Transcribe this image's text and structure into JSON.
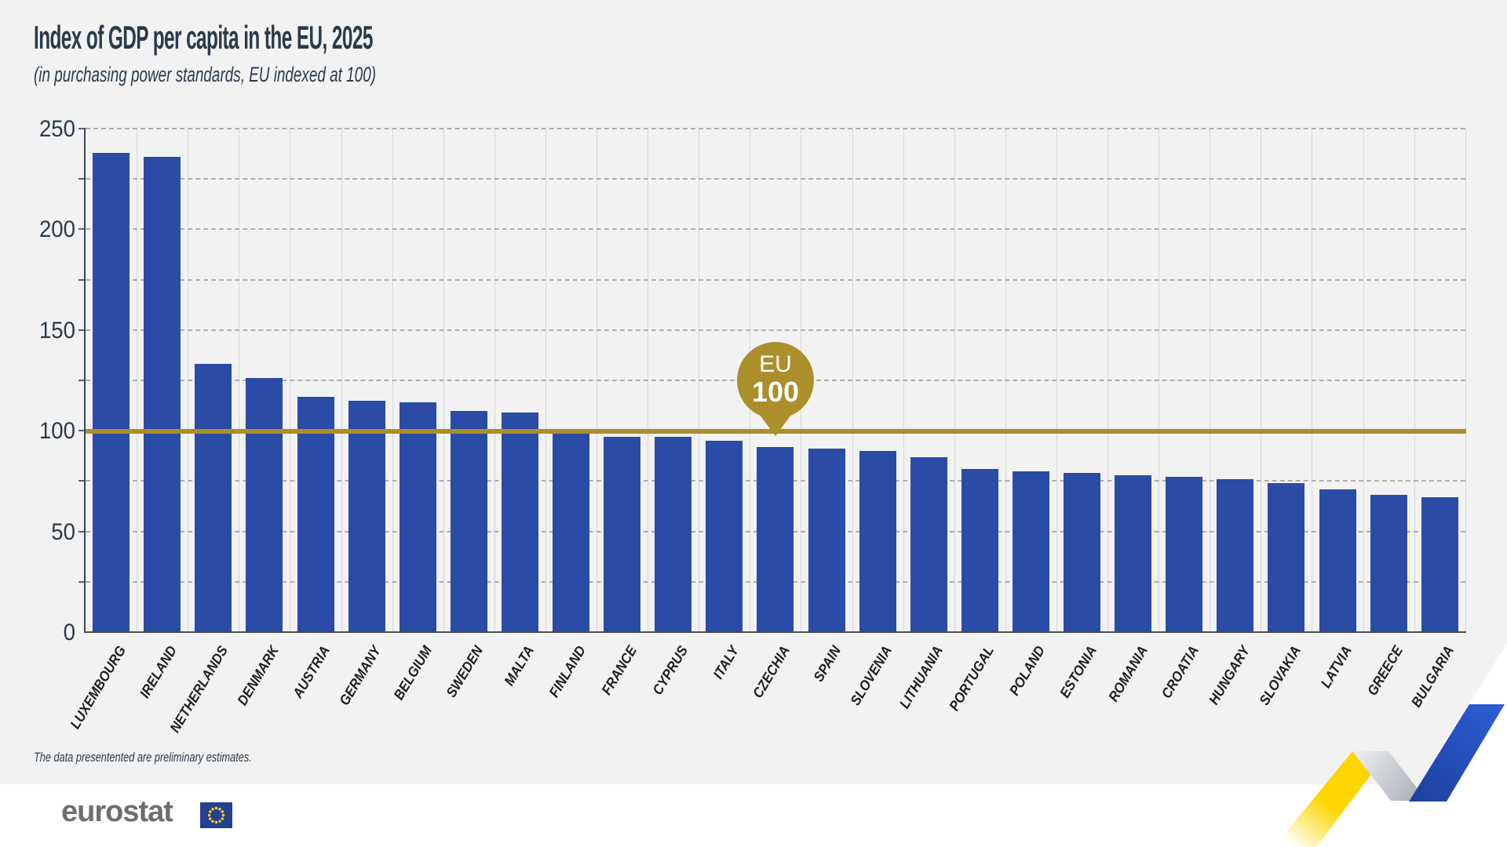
{
  "header": {
    "title": "Index of GDP per capita in the EU, 2025",
    "subtitle": "(in purchasing power standards, EU indexed at 100)"
  },
  "chart_data": {
    "type": "bar",
    "title": "Index of GDP per capita in the EU, 2025",
    "subtitle": "(in purchasing power standards, EU indexed at 100)",
    "categories": [
      "LUXEMBOURG",
      "IRELAND",
      "NETHERLANDS",
      "DENMARK",
      "AUSTRIA",
      "GERMANY",
      "BELGIUM",
      "SWEDEN",
      "MALTA",
      "FINLAND",
      "FRANCE",
      "CYPRUS",
      "ITALY",
      "CZECHIA",
      "SPAIN",
      "SLOVENIA",
      "LITHUANIA",
      "PORTUGAL",
      "POLAND",
      "ESTONIA",
      "ROMANIA",
      "CROATIA",
      "HUNGARY",
      "SLOVAKIA",
      "LATVIA",
      "GREECE",
      "BULGARIA"
    ],
    "values": [
      238,
      236,
      133,
      126,
      117,
      115,
      114,
      110,
      109,
      101,
      97,
      97,
      95,
      92,
      91,
      90,
      87,
      81,
      80,
      79,
      78,
      77,
      76,
      74,
      71,
      68,
      67
    ],
    "xlabel": "",
    "ylabel": "",
    "ylim": [
      0,
      250
    ],
    "yticks": [
      0,
      50,
      100,
      150,
      200,
      250
    ],
    "grid_step": 25,
    "grid": "horizontal-dashed and vertical category separators",
    "legend_position": "none",
    "reference_line": {
      "value": 100,
      "badge_top": "EU",
      "badge_bottom": "100"
    },
    "colors": {
      "bar": "#2a4ba6",
      "reference": "#ac8e2a",
      "card_background": "#f2f2f2",
      "ribbon_yellow": "#fed500",
      "ribbon_silver": "#a6aab2",
      "ribbon_blue": "#2154cd"
    }
  },
  "footnote": "The data presentented are preliminary estimates.",
  "logo": {
    "text": "eurostat"
  }
}
